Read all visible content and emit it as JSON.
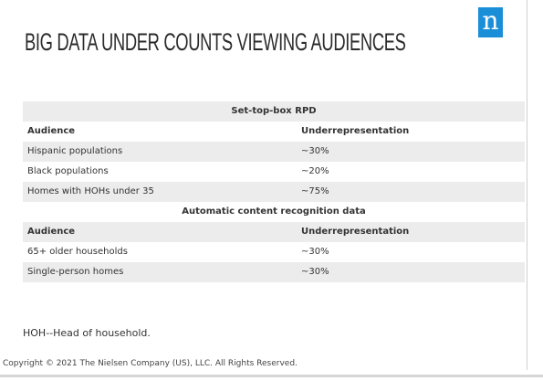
{
  "title": "BIG DATA UNDER COUNTS VIEWING AUDIENCES",
  "logo": {
    "glyph": "n",
    "color": "#1a8fd8"
  },
  "sections": [
    {
      "header": "Set-top-box RPD",
      "column_audience": "Audience",
      "column_underrepresentation": "Underrepresentation",
      "rows": [
        {
          "audience": "Hispanic populations",
          "underrepresentation": "~30%"
        },
        {
          "audience": "Black populations",
          "underrepresentation": "~20%"
        },
        {
          "audience": "Homes with HOHs under 35",
          "underrepresentation": "~75%"
        }
      ]
    },
    {
      "header": "Automatic content recognition data",
      "column_audience": "Audience",
      "column_underrepresentation": "Underrepresentation",
      "rows": [
        {
          "audience": "65+ older households",
          "underrepresentation": "~30%"
        },
        {
          "audience": "Single-person homes",
          "underrepresentation": "~30%"
        }
      ]
    }
  ],
  "footnote": "HOH--Head of household.",
  "copyright": "Copyright © 2021 The Nielsen Company (US), LLC. All Rights Reserved.",
  "colors": {
    "shaded_row": "#ececec",
    "text": "#333333"
  }
}
